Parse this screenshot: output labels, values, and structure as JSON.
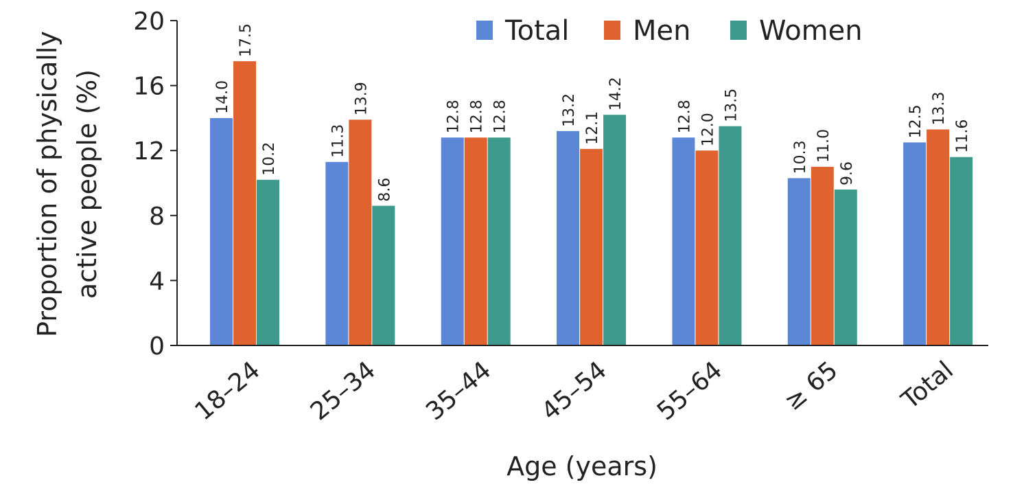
{
  "chart_data": {
    "type": "bar",
    "title": "",
    "xlabel": "Age (years)",
    "ylabel_lines": [
      "Proportion of physically",
      "active people (%)"
    ],
    "ylim": [
      0,
      20
    ],
    "yticks": [
      0,
      4,
      8,
      12,
      16,
      20
    ],
    "grid": false,
    "legend_position": "top-right",
    "categories": [
      "18–24",
      "25–34",
      "35–44",
      "45–54",
      "55–64",
      "≥ 65",
      "Total"
    ],
    "series": [
      {
        "name": "Total",
        "color": "#5b87d6",
        "values": [
          14.0,
          11.3,
          12.8,
          13.2,
          12.8,
          10.3,
          12.5
        ],
        "labels": [
          "14.0",
          "11.3",
          "12.8",
          "13.2",
          "12.8",
          "10.3",
          "12.5"
        ]
      },
      {
        "name": "Men",
        "color": "#e0622f",
        "values": [
          17.5,
          13.9,
          12.8,
          12.1,
          12.0,
          11.0,
          13.3
        ],
        "labels": [
          "17.5",
          "13.9",
          "12.8",
          "12.1",
          "12.0",
          "11.0",
          "13.3"
        ]
      },
      {
        "name": "Women",
        "color": "#3e9a8c",
        "values": [
          10.2,
          8.6,
          12.8,
          14.2,
          13.5,
          9.6,
          11.6
        ],
        "labels": [
          "10.2",
          "8.6",
          "12.8",
          "14.2",
          "13.5",
          "9.6",
          "11.6"
        ]
      }
    ]
  }
}
